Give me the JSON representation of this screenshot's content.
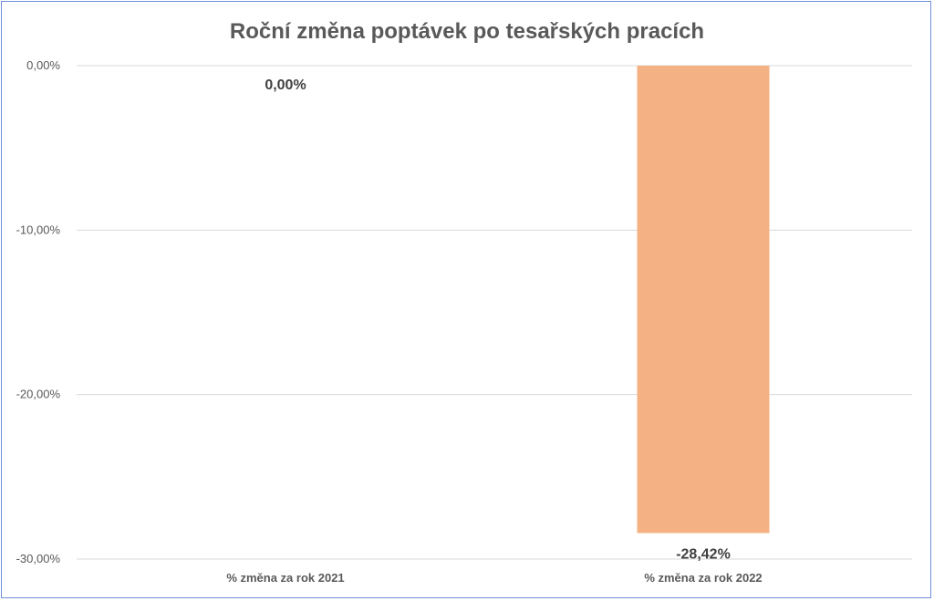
{
  "chart_data": {
    "type": "bar",
    "title": "Roční změna poptávek po tesařských pracích",
    "categories": [
      "% změna za rok 2021",
      "% změna za rok 2022"
    ],
    "values": [
      0.0,
      -28.42
    ],
    "data_labels": [
      "0,00%",
      "-28,42%"
    ],
    "ylim": [
      -30,
      0
    ],
    "yticks": [
      0,
      -10,
      -20,
      -30
    ],
    "ytick_labels": [
      "0,00%",
      "-10,00%",
      "-20,00%",
      "-30,00%"
    ],
    "grid": true,
    "legend": "none",
    "bar_color": "#f4b183"
  }
}
